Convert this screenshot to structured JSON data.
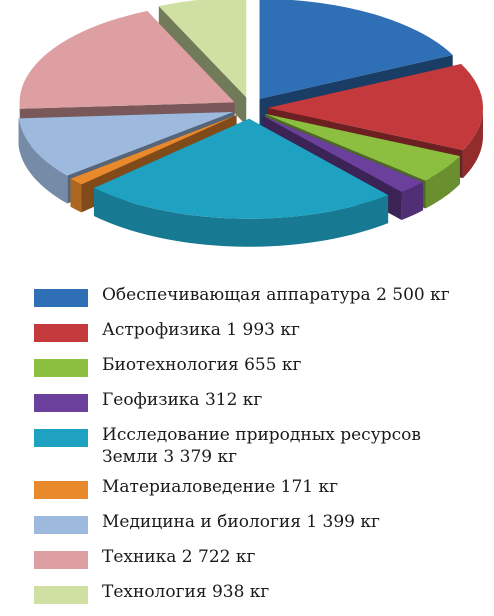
{
  "chart_data": {
    "type": "pie",
    "style": "exploded-3d",
    "unit": "кг",
    "slices": [
      {
        "label": "Обеспечивающая аппаратура 2 500 кг",
        "value": 2500,
        "color": "#2e6fb5"
      },
      {
        "label": "Астрофизика 1 993 кг",
        "value": 1993,
        "color": "#c43a3c"
      },
      {
        "label": "Биотехнология 655 кг",
        "value": 655,
        "color": "#8cbf3f"
      },
      {
        "label": "Геофизика 312 кг",
        "value": 312,
        "color": "#6b3f9c"
      },
      {
        "label": "Исследование природных ресурсов\nЗемли 3 379 кг",
        "value": 3379,
        "color": "#1fa2c2"
      },
      {
        "label": "Материаловедение 171 кг",
        "value": 171,
        "color": "#e8892b"
      },
      {
        "label": "Медицина и биология 1 399 кг",
        "value": 1399,
        "color": "#9db9de"
      },
      {
        "label": "Техника 2 722 кг",
        "value": 2722,
        "color": "#dd9fa2"
      },
      {
        "label": "Технология 938 кг",
        "value": 938,
        "color": "#cfe0a2"
      }
    ],
    "legend_position": "bottom"
  }
}
